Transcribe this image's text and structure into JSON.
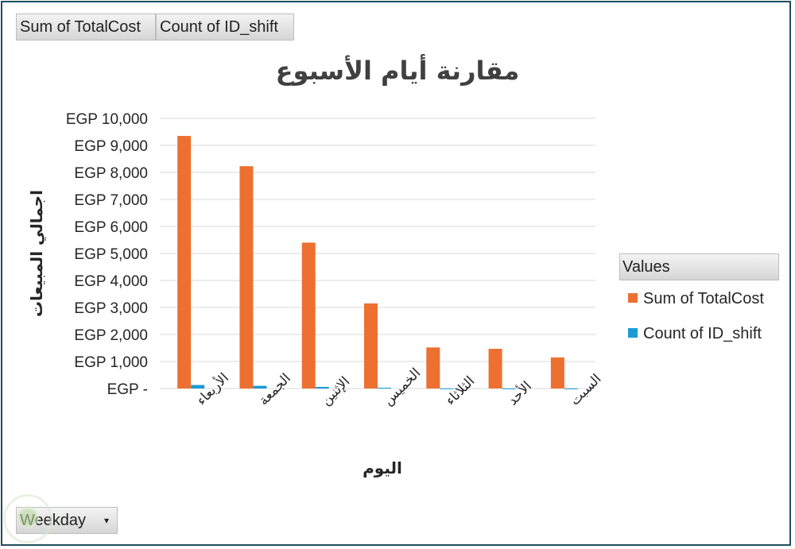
{
  "field_buttons": {
    "sum_label": "Sum of TotalCost",
    "count_label": "Count of ID_shift",
    "weekday_label": "Weekday",
    "weekday_arrow": "▾"
  },
  "legend": {
    "header": "Values",
    "placement": "right"
  },
  "colors": {
    "sum": "#ed7031",
    "count": "#1c9ad6",
    "grid": "#d9d9d9",
    "frame": "#1f4e5f"
  },
  "icons": {
    "logo": "watermark-logo-icon",
    "dropdown": "dropdown-arrow-icon"
  },
  "chart_data": {
    "type": "bar",
    "title": "مقارنة أيام الأسبوع",
    "xlabel": "اليوم",
    "ylabel": "اجمالي المبيعات",
    "ylim": [
      0,
      10000
    ],
    "ytick_values": [
      0,
      1000,
      2000,
      3000,
      4000,
      5000,
      6000,
      7000,
      8000,
      9000,
      10000
    ],
    "ytick_labels": [
      "EGP -",
      "EGP 1,000",
      "EGP 2,000",
      "EGP 3,000",
      "EGP 4,000",
      "EGP 5,000",
      "EGP 6,000",
      "EGP 7,000",
      "EGP 8,000",
      "EGP 9,000",
      "EGP 10,000"
    ],
    "grid": true,
    "categories": [
      "الأربعاء",
      "الجمعة",
      "الإثنين",
      "الخميس",
      "الثلاثاء",
      "الأحد",
      "السبت"
    ],
    "series": [
      {
        "name": "Sum of TotalCost",
        "values": [
          9350,
          8230,
          5400,
          3150,
          1520,
          1470,
          1150
        ]
      },
      {
        "name": "Count of ID_shift",
        "values": [
          130,
          100,
          60,
          30,
          5,
          3,
          2
        ]
      }
    ]
  }
}
